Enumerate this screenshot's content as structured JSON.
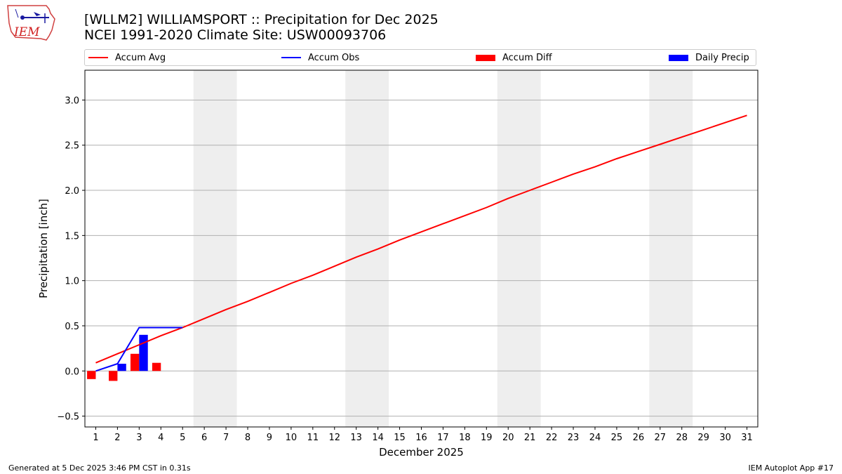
{
  "header": {
    "title_line1": "[WLLM2] WILLIAMSPORT :: Precipitation for Dec 2025",
    "title_line2": "NCEI 1991-2020 Climate Site: USW00093706",
    "logo_text": "IEM"
  },
  "footer": {
    "left": "Generated at 5 Dec 2025 3:46 PM CST in 0.31s",
    "right": "IEM Autoplot App #17"
  },
  "chart_data": {
    "type": "line",
    "xlabel": "December 2025",
    "ylabel": "Precipitation [inch]",
    "xlim": [
      0.5,
      31.5
    ],
    "ylim": [
      -0.62,
      3.33
    ],
    "yticks": [
      -0.5,
      0.0,
      0.5,
      1.0,
      1.5,
      2.0,
      2.5,
      3.0
    ],
    "ytick_labels": [
      "−0.5",
      "0.0",
      "0.5",
      "1.0",
      "1.5",
      "2.0",
      "2.5",
      "3.0"
    ],
    "x": [
      1,
      2,
      3,
      4,
      5,
      6,
      7,
      8,
      9,
      10,
      11,
      12,
      13,
      14,
      15,
      16,
      17,
      18,
      19,
      20,
      21,
      22,
      23,
      24,
      25,
      26,
      27,
      28,
      29,
      30,
      31
    ],
    "xtick_labels": [
      "1",
      "2",
      "3",
      "4",
      "5",
      "6",
      "7",
      "8",
      "9",
      "10",
      "11",
      "12",
      "13",
      "14",
      "15",
      "16",
      "17",
      "18",
      "19",
      "20",
      "21",
      "22",
      "23",
      "24",
      "25",
      "26",
      "27",
      "28",
      "29",
      "30",
      "31"
    ],
    "grid": "y",
    "legend_position": "top",
    "weekend_shading": [
      [
        5.5,
        7.5
      ],
      [
        12.5,
        14.5
      ],
      [
        19.5,
        21.5
      ],
      [
        26.5,
        28.5
      ]
    ],
    "series": [
      {
        "name": "Accum Avg",
        "type": "line",
        "color": "#ff0000",
        "x": [
          1,
          2,
          3,
          4,
          5,
          6,
          7,
          8,
          9,
          10,
          11,
          12,
          13,
          14,
          15,
          16,
          17,
          18,
          19,
          20,
          21,
          22,
          23,
          24,
          25,
          26,
          27,
          28,
          29,
          30,
          31
        ],
        "values": [
          0.09,
          0.19,
          0.29,
          0.39,
          0.48,
          0.58,
          0.68,
          0.77,
          0.87,
          0.97,
          1.06,
          1.16,
          1.26,
          1.35,
          1.45,
          1.54,
          1.63,
          1.72,
          1.81,
          1.91,
          2.0,
          2.09,
          2.18,
          2.26,
          2.35,
          2.43,
          2.51,
          2.59,
          2.67,
          2.75,
          2.83
        ]
      },
      {
        "name": "Accum Obs",
        "type": "line",
        "color": "#0000ff",
        "x": [
          1,
          2,
          3,
          4,
          5
        ],
        "values": [
          0.0,
          0.08,
          0.48,
          0.48,
          0.48
        ]
      },
      {
        "name": "Accum Diff",
        "type": "bar",
        "color": "#ff0000",
        "x": [
          1,
          2,
          3,
          4
        ],
        "values": [
          -0.09,
          -0.11,
          0.19,
          0.09
        ]
      },
      {
        "name": "Daily Precip",
        "type": "bar",
        "color": "#0000ff",
        "x": [
          1,
          2,
          3,
          4
        ],
        "values": [
          0.0,
          0.08,
          0.4,
          0.0
        ]
      }
    ]
  }
}
